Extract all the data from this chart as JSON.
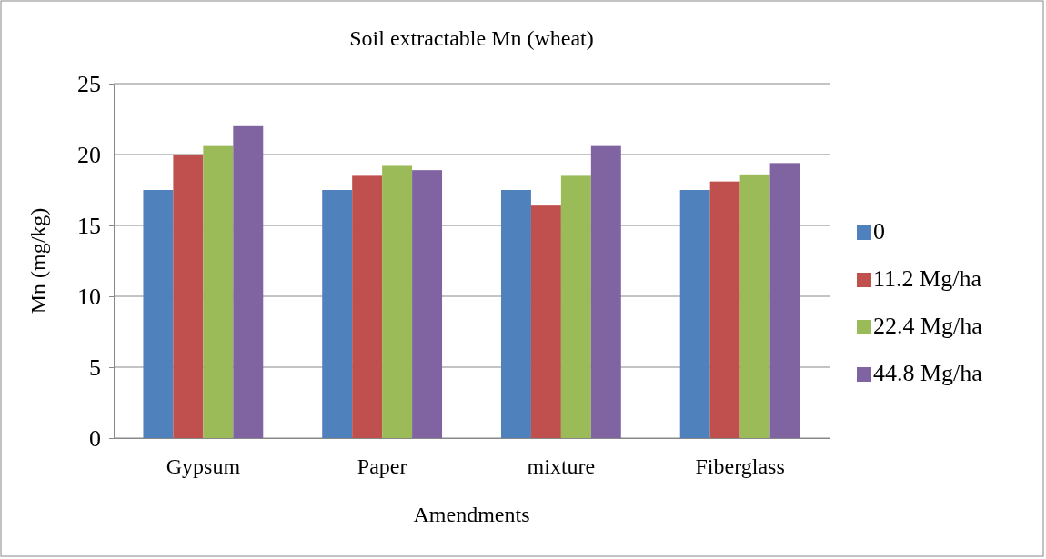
{
  "chart_data": {
    "type": "bar",
    "title": "Soil extractable Mn (wheat)",
    "xlabel": "Amendments",
    "ylabel": "Mn (mg/kg)",
    "categories": [
      "Gypsum",
      "Paper",
      "mixture",
      "Fiberglass"
    ],
    "series": [
      {
        "name": "0",
        "color": "#4f81bd",
        "values": [
          17.5,
          17.5,
          17.5,
          17.5
        ]
      },
      {
        "name": "11.2 Mg/ha",
        "color": "#c0504d",
        "values": [
          20.0,
          18.5,
          16.4,
          18.1
        ]
      },
      {
        "name": "22.4 Mg/ha",
        "color": "#9bbb59",
        "values": [
          20.6,
          19.2,
          18.5,
          18.6
        ]
      },
      {
        "name": "44.8 Mg/ha",
        "color": "#8064a2",
        "values": [
          22.0,
          18.9,
          20.6,
          19.4
        ]
      }
    ],
    "ylim": [
      0,
      25
    ],
    "yticks": [
      0,
      5,
      10,
      15,
      20,
      25
    ],
    "grid": "y",
    "legend": "right"
  }
}
